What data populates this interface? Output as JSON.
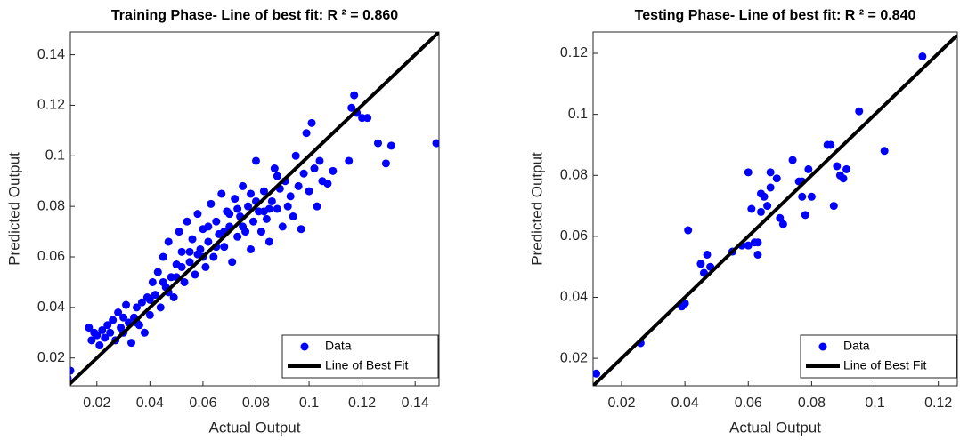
{
  "chart_data": [
    {
      "type": "scatter",
      "title": "Training Phase- Line of best fit: R ² = 0.860",
      "x_label": "Actual Output",
      "y_label": "Predicted Output",
      "xlim": [
        0.01,
        0.149
      ],
      "ylim": [
        0.009,
        0.149
      ],
      "xticks": [
        0.02,
        0.04,
        0.06,
        0.08,
        0.1,
        0.12,
        0.14
      ],
      "yticks": [
        0.02,
        0.04,
        0.06,
        0.08,
        0.1,
        0.12,
        0.14
      ],
      "legend": "lower right",
      "series": [
        {
          "name": "Data",
          "color": "#0000ff",
          "x": [
            0.009,
            0.01,
            0.017,
            0.018,
            0.019,
            0.02,
            0.021,
            0.022,
            0.023,
            0.024,
            0.025,
            0.026,
            0.027,
            0.028,
            0.029,
            0.03,
            0.031,
            0.032,
            0.033,
            0.034,
            0.035,
            0.036,
            0.037,
            0.038,
            0.039,
            0.04,
            0.041,
            0.042,
            0.043,
            0.044,
            0.045,
            0.046,
            0.047,
            0.048,
            0.049,
            0.05,
            0.051,
            0.052,
            0.053,
            0.054,
            0.055,
            0.056,
            0.057,
            0.058,
            0.059,
            0.06,
            0.061,
            0.062,
            0.063,
            0.064,
            0.065,
            0.066,
            0.067,
            0.068,
            0.069,
            0.07,
            0.071,
            0.072,
            0.073,
            0.074,
            0.075,
            0.076,
            0.077,
            0.078,
            0.079,
            0.08,
            0.081,
            0.082,
            0.083,
            0.084,
            0.085,
            0.086,
            0.087,
            0.088,
            0.089,
            0.09,
            0.091,
            0.092,
            0.093,
            0.094,
            0.095,
            0.096,
            0.097,
            0.098,
            0.099,
            0.1,
            0.101,
            0.102,
            0.103,
            0.104,
            0.105,
            0.107,
            0.109,
            0.115,
            0.116,
            0.117,
            0.118,
            0.12,
            0.122,
            0.126,
            0.129,
            0.131,
            0.148,
            0.05,
            0.055,
            0.06,
            0.065,
            0.07,
            0.075,
            0.08,
            0.085,
            0.045,
            0.04,
            0.035,
            0.03,
            0.062,
            0.068,
            0.073,
            0.078,
            0.083,
            0.088,
            0.058,
            0.052,
            0.047
          ],
          "values": [
            0.012,
            0.015,
            0.032,
            0.027,
            0.03,
            0.029,
            0.025,
            0.031,
            0.028,
            0.033,
            0.03,
            0.035,
            0.027,
            0.038,
            0.032,
            0.03,
            0.041,
            0.034,
            0.026,
            0.036,
            0.04,
            0.033,
            0.042,
            0.03,
            0.044,
            0.037,
            0.05,
            0.045,
            0.054,
            0.04,
            0.06,
            0.048,
            0.066,
            0.052,
            0.044,
            0.057,
            0.07,
            0.062,
            0.05,
            0.074,
            0.058,
            0.067,
            0.053,
            0.077,
            0.063,
            0.071,
            0.056,
            0.066,
            0.081,
            0.06,
            0.074,
            0.069,
            0.085,
            0.064,
            0.078,
            0.072,
            0.058,
            0.083,
            0.068,
            0.076,
            0.088,
            0.07,
            0.08,
            0.063,
            0.074,
            0.098,
            0.078,
            0.07,
            0.086,
            0.075,
            0.066,
            0.082,
            0.095,
            0.079,
            0.087,
            0.072,
            0.09,
            0.08,
            0.084,
            0.076,
            0.1,
            0.088,
            0.071,
            0.093,
            0.109,
            0.086,
            0.113,
            0.095,
            0.08,
            0.098,
            0.09,
            0.089,
            0.094,
            0.098,
            0.119,
            0.124,
            0.117,
            0.115,
            0.115,
            0.105,
            0.097,
            0.104,
            0.105,
            0.052,
            0.062,
            0.06,
            0.064,
            0.077,
            0.072,
            0.082,
            0.079,
            0.05,
            0.043,
            0.034,
            0.036,
            0.072,
            0.07,
            0.079,
            0.085,
            0.078,
            0.092,
            0.061,
            0.056,
            0.046
          ]
        },
        {
          "name": "Line of Best Fit",
          "color": "#000000",
          "kind": "line",
          "x": [
            0.009,
            0.149
          ],
          "values": [
            0.009,
            0.149
          ]
        }
      ]
    },
    {
      "type": "scatter",
      "title": "Testing Phase- Line of best fit: R ² = 0.840",
      "x_label": "Actual Output",
      "y_label": "Predicted Output",
      "xlim": [
        0.011,
        0.126
      ],
      "ylim": [
        0.011,
        0.127
      ],
      "xticks": [
        0.02,
        0.04,
        0.06,
        0.08,
        0.1,
        0.12
      ],
      "yticks": [
        0.02,
        0.04,
        0.06,
        0.08,
        0.1,
        0.12
      ],
      "legend": "lower right",
      "series": [
        {
          "name": "Data",
          "color": "#0000ff",
          "x": [
            0.012,
            0.026,
            0.039,
            0.04,
            0.041,
            0.045,
            0.046,
            0.047,
            0.048,
            0.055,
            0.058,
            0.06,
            0.06,
            0.061,
            0.062,
            0.063,
            0.063,
            0.064,
            0.064,
            0.065,
            0.066,
            0.067,
            0.067,
            0.069,
            0.07,
            0.071,
            0.074,
            0.076,
            0.077,
            0.077,
            0.078,
            0.079,
            0.08,
            0.085,
            0.086,
            0.087,
            0.088,
            0.089,
            0.09,
            0.091,
            0.095,
            0.103,
            0.115
          ],
          "values": [
            0.015,
            0.025,
            0.037,
            0.038,
            0.062,
            0.051,
            0.048,
            0.054,
            0.05,
            0.055,
            0.057,
            0.081,
            0.057,
            0.069,
            0.058,
            0.058,
            0.054,
            0.074,
            0.068,
            0.073,
            0.07,
            0.076,
            0.081,
            0.079,
            0.066,
            0.064,
            0.085,
            0.078,
            0.078,
            0.073,
            0.067,
            0.082,
            0.073,
            0.09,
            0.09,
            0.07,
            0.083,
            0.08,
            0.079,
            0.082,
            0.101,
            0.088,
            0.119
          ]
        },
        {
          "name": "Line of Best Fit",
          "color": "#000000",
          "kind": "line",
          "x": [
            0.011,
            0.126
          ],
          "values": [
            0.011,
            0.126
          ]
        }
      ]
    }
  ]
}
